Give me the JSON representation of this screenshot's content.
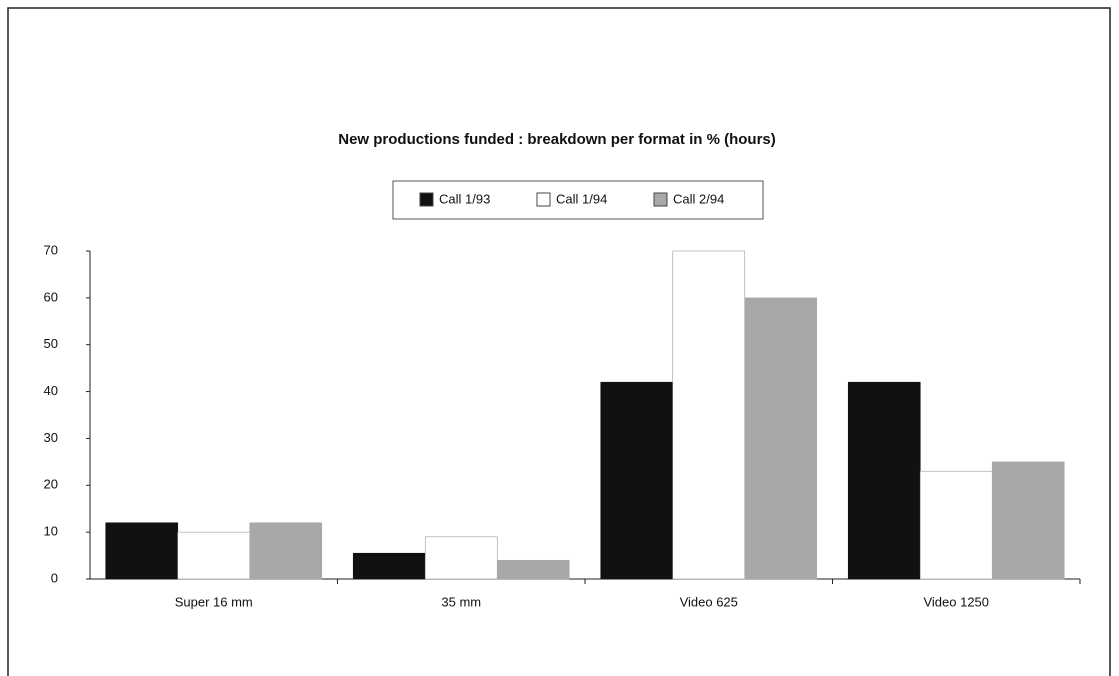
{
  "chart_data": {
    "type": "bar",
    "title": "New productions funded : breakdown per format in % (hours)",
    "categories": [
      "Super 16 mm",
      "35 mm",
      "Video 625",
      "Video 1250"
    ],
    "series": [
      {
        "name": "Call 1/93",
        "color": "#111111",
        "values": [
          12,
          5.5,
          42,
          42
        ]
      },
      {
        "name": "Call 1/94",
        "color": "#ffffff",
        "values": [
          10,
          9,
          70,
          23
        ]
      },
      {
        "name": "Call 2/94",
        "color": "#a8a8a8",
        "values": [
          12,
          4,
          60,
          25
        ]
      }
    ],
    "ylim": [
      0,
      70
    ],
    "yticks": [
      0,
      10,
      20,
      30,
      40,
      50,
      60,
      70
    ],
    "grid": false
  }
}
